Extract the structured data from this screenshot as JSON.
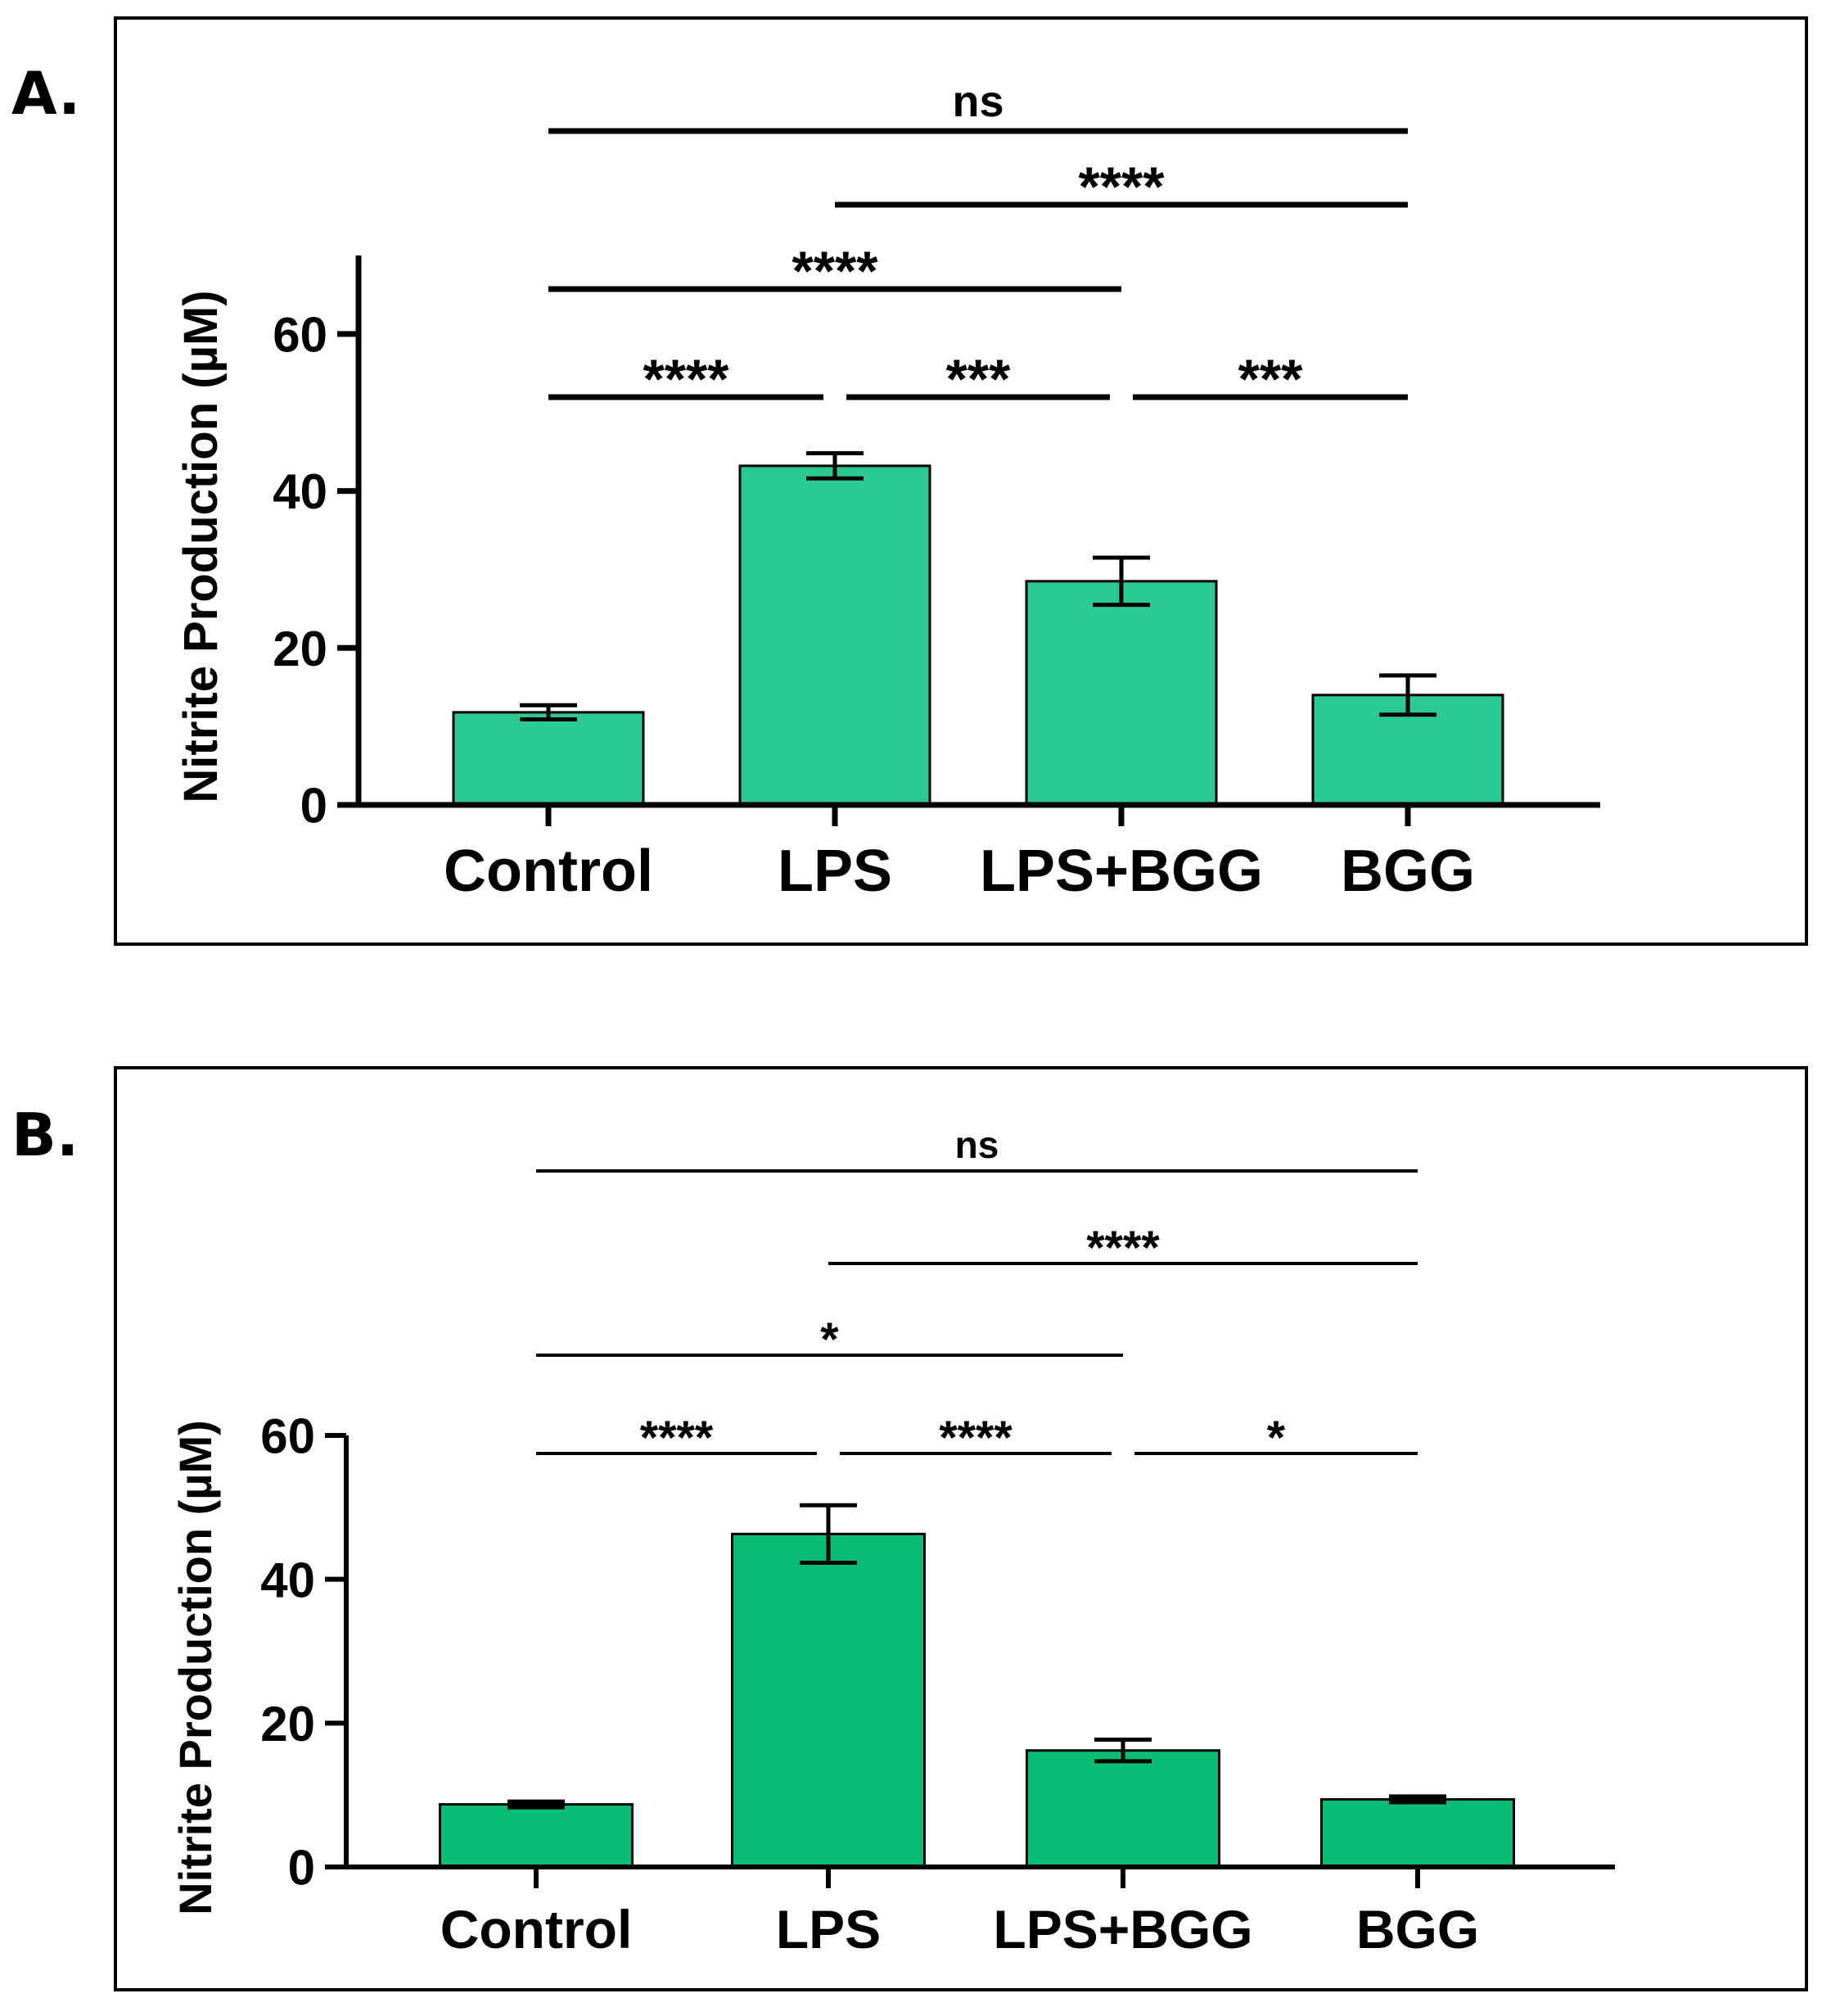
{
  "colors": {
    "bar_fill_a": "#2bc995",
    "bar_fill_b": "#07bc75",
    "outline": "#000000"
  },
  "chart_data": [
    {
      "panel_label": "A.",
      "type": "bar",
      "title": "",
      "xlabel": "",
      "ylabel": "Nitrite Production (µM)",
      "categories": [
        "Control",
        "LPS",
        "LPS+BGG",
        "BGG"
      ],
      "values": [
        11.8,
        43.2,
        28.5,
        14.0
      ],
      "errors": [
        0.9,
        1.6,
        3.0,
        2.5
      ],
      "ylim": [
        0,
        70
      ],
      "yticks": [
        0,
        20,
        40,
        60
      ],
      "ytick_labels": [
        "0",
        "20",
        "40",
        "60"
      ],
      "grid": false,
      "significance": [
        {
          "from": 0,
          "to": 1,
          "label": "****",
          "level": 0
        },
        {
          "from": 1,
          "to": 2,
          "label": "***",
          "level": 0
        },
        {
          "from": 2,
          "to": 3,
          "label": "***",
          "level": 0
        },
        {
          "from": 0,
          "to": 2,
          "label": "****",
          "level": 1
        },
        {
          "from": 1,
          "to": 3,
          "label": "****",
          "level": 2
        },
        {
          "from": 0,
          "to": 3,
          "label": "ns",
          "level": 3
        }
      ]
    },
    {
      "panel_label": "B.",
      "type": "bar",
      "title": "",
      "xlabel": "",
      "ylabel": "Nitrite Production (µM)",
      "categories": [
        "Control",
        "LPS",
        "LPS+BGG",
        "BGG"
      ],
      "values": [
        8.7,
        46.3,
        16.2,
        9.4
      ],
      "errors": [
        0.4,
        4.0,
        1.5,
        0.4
      ],
      "ylim": [
        0,
        60
      ],
      "yticks": [
        0,
        20,
        40,
        60
      ],
      "ytick_labels": [
        "0",
        "20",
        "40",
        "60"
      ],
      "grid": false,
      "significance": [
        {
          "from": 0,
          "to": 1,
          "label": "****",
          "level": 0
        },
        {
          "from": 1,
          "to": 2,
          "label": "****",
          "level": 0
        },
        {
          "from": 2,
          "to": 3,
          "label": "*",
          "level": 0
        },
        {
          "from": 0,
          "to": 2,
          "label": "*",
          "level": 1
        },
        {
          "from": 1,
          "to": 3,
          "label": "****",
          "level": 2
        },
        {
          "from": 0,
          "to": 3,
          "label": "ns",
          "level": 3
        }
      ]
    }
  ]
}
